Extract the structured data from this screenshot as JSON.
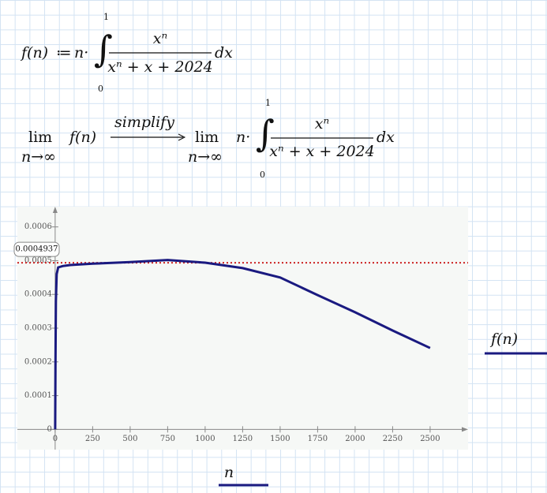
{
  "definition": {
    "lhs": "f(n)",
    "assign": "≔",
    "factor": "n·",
    "integral": "∫",
    "upper": "1",
    "lower": "0",
    "numerator": "xⁿ",
    "denominator": "xⁿ + x + 2024",
    "differential": "dx"
  },
  "limit": {
    "lim": "lim",
    "approach": "n→∞",
    "function": "f(n)",
    "keyword": "simplify",
    "result_lim": "lim",
    "result_approach": "n→∞",
    "factor": "n·",
    "integral": "∫",
    "upper": "1",
    "lower": "0",
    "numerator": "xⁿ",
    "denominator": "xⁿ + x + 2024",
    "differential": "dx"
  },
  "chart_data": {
    "type": "line",
    "xlabel": "n",
    "x": [
      0,
      2,
      5,
      10,
      20,
      50,
      100,
      250,
      500,
      750,
      1000,
      1250,
      1500,
      1750,
      2000,
      2250,
      2500
    ],
    "series": [
      {
        "name": "f(n)",
        "color": "#1a1a80",
        "values": [
          0,
          0.0002,
          0.00038,
          0.00046,
          0.00048,
          0.000484,
          0.000487,
          0.000491,
          0.000496,
          0.000502,
          0.000494,
          0.000478,
          0.00045,
          0.000398,
          0.000347,
          0.000293,
          0.000241
        ]
      }
    ],
    "xlim": [
      -252,
      2753
    ],
    "ylim": [
      -6e-05,
      0.00066
    ],
    "xticks": [
      0,
      250,
      500,
      750,
      1000,
      1250,
      1500,
      1750,
      2000,
      2250,
      2500
    ],
    "yticks": [
      0,
      0.0001,
      0.0002,
      0.0003,
      0.0004,
      0.0005,
      0.0006
    ],
    "hline": {
      "value": 0.0004937,
      "color": "#cc2222"
    }
  }
}
